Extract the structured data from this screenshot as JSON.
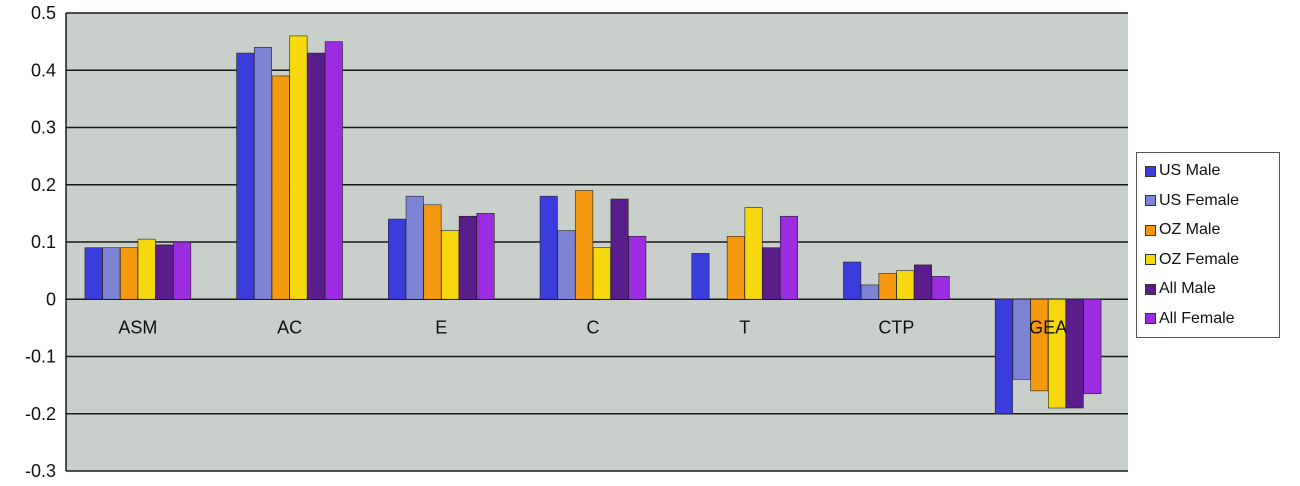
{
  "chart_data": {
    "type": "bar",
    "categories": [
      "ASM",
      "AC",
      "E",
      "C",
      "T",
      "CTP",
      "GEA"
    ],
    "series": [
      {
        "name": "US Male",
        "color": "#3b3cdc",
        "values": [
          0.09,
          0.43,
          0.14,
          0.18,
          0.08,
          0.065,
          -0.2
        ]
      },
      {
        "name": "US Female",
        "color": "#7d84d6",
        "values": [
          0.09,
          0.44,
          0.18,
          0.12,
          0.0,
          0.025,
          -0.14
        ]
      },
      {
        "name": "OZ Male",
        "color": "#f59a10",
        "values": [
          0.09,
          0.39,
          0.165,
          0.19,
          0.11,
          0.045,
          -0.16
        ]
      },
      {
        "name": "OZ Female",
        "color": "#f5d80e",
        "values": [
          0.105,
          0.46,
          0.12,
          0.09,
          0.16,
          0.05,
          -0.19
        ]
      },
      {
        "name": "All Male",
        "color": "#5b1c8c",
        "values": [
          0.095,
          0.43,
          0.145,
          0.175,
          0.09,
          0.06,
          -0.19
        ]
      },
      {
        "name": "All Female",
        "color": "#9b2ce0",
        "values": [
          0.1,
          0.45,
          0.15,
          0.11,
          0.145,
          0.04,
          -0.165
        ]
      }
    ],
    "yticks": [
      "0.5",
      "0.4",
      "0.3",
      "0.2",
      "0.1",
      "0",
      "-0.1",
      "-0.2",
      "-0.3"
    ],
    "ylim": [
      -0.3,
      0.5
    ],
    "grid": true,
    "legend_position": "right",
    "plot_background": "#c9cfcb"
  }
}
